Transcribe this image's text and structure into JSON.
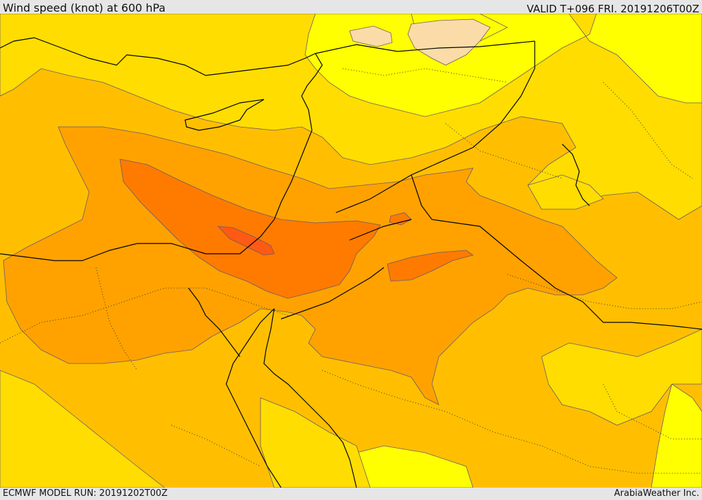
{
  "header": {
    "title": "Wind speed (knot) at 600 hPa",
    "valid": "VALID T+096 FRI. 20191206T00Z"
  },
  "footer": {
    "model_run": "ECMWF MODEL RUN: 20191202T00Z",
    "credit": "ArabiaWeather Inc."
  },
  "map": {
    "colors": {
      "level_1": "#ffff00",
      "level_2": "#ffdd00",
      "level_3": "#ffbf00",
      "level_4": "#ffa200",
      "level_5": "#ff7b00",
      "level_6": "#ff5a14",
      "light_patch": "#fbdca8",
      "coastline": "#000000",
      "contour_edge": "#6a5a6a"
    }
  }
}
